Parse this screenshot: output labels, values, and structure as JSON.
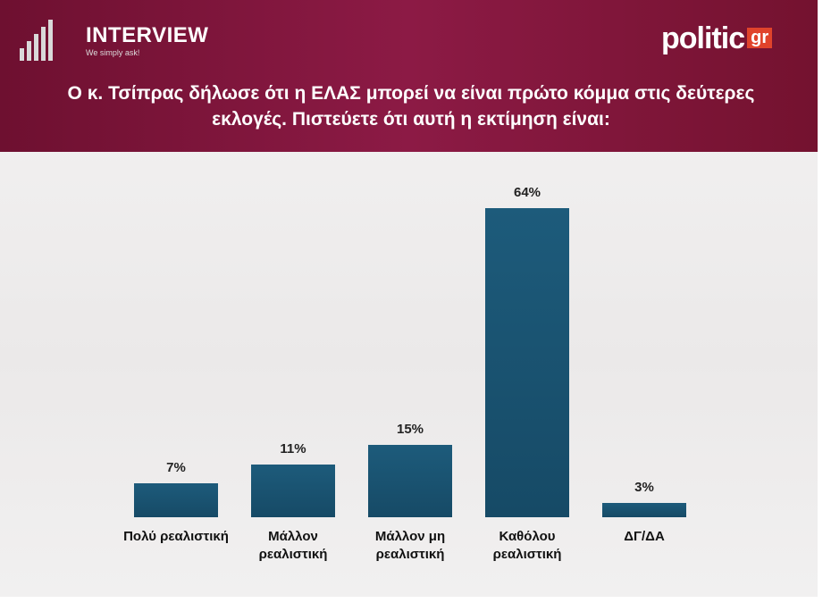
{
  "header": {
    "brand": "INTERVIEW",
    "tagline": "We simply ask!",
    "logo": "politic",
    "logo_suffix": "gr"
  },
  "chart_data": {
    "type": "bar",
    "title": "Ο κ. Τσίπρας δήλωσε ότι η ΕΛΑΣ μπορεί να είναι πρώτο κόμμα στις δεύτερες εκλογές. Πιστεύετε ότι αυτή η εκτίμηση είναι:",
    "categories": [
      "Πολύ ρεαλιστική",
      "Μάλλον ρεαλιστική",
      "Μάλλον μη ρεαλιστική",
      "Καθόλου ρεαλιστική",
      "ΔΓ/ΔΑ"
    ],
    "values": [
      7,
      11,
      15,
      64,
      3
    ],
    "value_labels": [
      "7%",
      "11%",
      "15%",
      "64%",
      "3%"
    ],
    "color": "#1d5b7b"
  }
}
